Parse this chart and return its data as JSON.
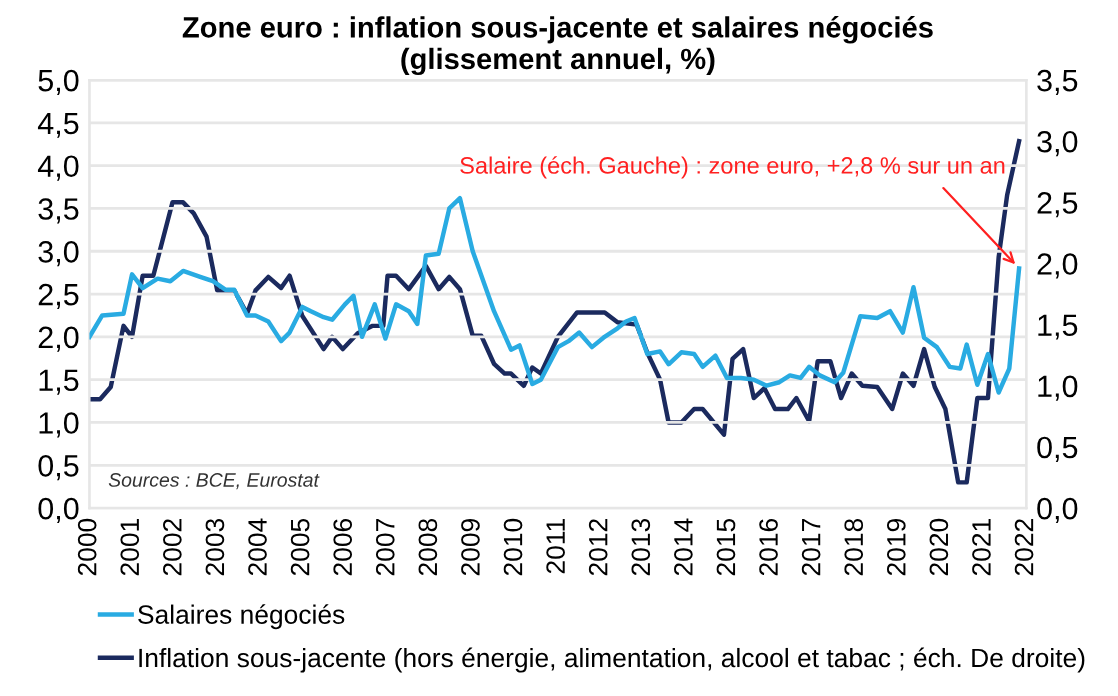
{
  "chart_data": {
    "type": "line",
    "title": "Zone euro : inflation sous-jacente et salaires négociés\n(glissement annuel, %)",
    "xlim": [
      2000,
      2022
    ],
    "xticks": [
      2000,
      2001,
      2002,
      2003,
      2004,
      2005,
      2006,
      2007,
      2008,
      2009,
      2010,
      2011,
      2012,
      2013,
      2014,
      2015,
      2016,
      2017,
      2018,
      2019,
      2020,
      2021,
      2022
    ],
    "ylim": [
      0,
      5
    ],
    "yticks": [
      {
        "value": 0,
        "label": "0,0"
      },
      {
        "value": 0.5,
        "label": "0,5"
      },
      {
        "value": 1,
        "label": "1,0"
      },
      {
        "value": 1.5,
        "label": "1,5"
      },
      {
        "value": 2,
        "label": "2,0"
      },
      {
        "value": 2.5,
        "label": "2,5"
      },
      {
        "value": 3,
        "label": "3,0"
      },
      {
        "value": 3.5,
        "label": "3,5"
      },
      {
        "value": 4,
        "label": "4,0"
      },
      {
        "value": 4.5,
        "label": "4,5"
      },
      {
        "value": 5,
        "label": "5,0"
      }
    ],
    "y2lim": [
      0,
      3.5
    ],
    "y2ticks": [
      {
        "value": 0,
        "label": "0,0"
      },
      {
        "value": 0.5,
        "label": "0,5"
      },
      {
        "value": 1,
        "label": "1,0"
      },
      {
        "value": 1.5,
        "label": "1,5"
      },
      {
        "value": 2,
        "label": "2,0"
      },
      {
        "value": 2.5,
        "label": "2,5"
      },
      {
        "value": 3,
        "label": "3,0"
      },
      {
        "value": 3.5,
        "label": "3,5"
      }
    ],
    "grid": "y",
    "legend": "bottom",
    "marker": "none",
    "line_style": "solid",
    "series": [
      {
        "name": "Salaires négociés",
        "color": "#29abe2",
        "x": [
          2000.0,
          2000.3,
          2000.8,
          2001.0,
          2001.25,
          2001.6,
          2001.9,
          2002.2,
          2002.6,
          2002.9,
          2003.2,
          2003.4,
          2003.7,
          2003.9,
          2004.2,
          2004.5,
          2004.7,
          2005.0,
          2005.2,
          2005.5,
          2005.7,
          2006.0,
          2006.2,
          2006.4,
          2006.7,
          2006.95,
          2007.2,
          2007.5,
          2007.7,
          2007.9,
          2008.2,
          2008.45,
          2008.7,
          2009.0,
          2009.5,
          2009.9,
          2010.1,
          2010.4,
          2010.6,
          2011.0,
          2011.25,
          2011.5,
          2011.8,
          2012.07,
          2012.4,
          2012.6,
          2012.8,
          2013.1,
          2013.4,
          2013.6,
          2013.9,
          2014.2,
          2014.4,
          2014.7,
          2014.97,
          2015.3,
          2015.6,
          2015.9,
          2016.2,
          2016.45,
          2016.7,
          2016.9,
          2017.15,
          2017.5,
          2017.7,
          2018.1,
          2018.5,
          2018.8,
          2019.1,
          2019.35,
          2019.6,
          2019.9,
          2020.2,
          2020.45,
          2020.6,
          2020.85,
          2021.1,
          2021.35,
          2021.6,
          2021.83
        ],
        "values": [
          2.0,
          2.25,
          2.27,
          2.73,
          2.57,
          2.68,
          2.65,
          2.77,
          2.7,
          2.65,
          2.55,
          2.55,
          2.25,
          2.25,
          2.18,
          1.95,
          2.05,
          2.35,
          2.3,
          2.23,
          2.2,
          2.38,
          2.48,
          2.0,
          2.38,
          1.98,
          2.38,
          2.3,
          2.15,
          2.95,
          2.97,
          3.5,
          3.62,
          3.0,
          2.3,
          1.85,
          1.9,
          1.45,
          1.5,
          1.88,
          1.95,
          2.05,
          1.88,
          1.99,
          2.1,
          2.18,
          2.22,
          1.8,
          1.83,
          1.68,
          1.82,
          1.8,
          1.65,
          1.78,
          1.52,
          1.52,
          1.5,
          1.43,
          1.47,
          1.55,
          1.52,
          1.65,
          1.55,
          1.47,
          1.58,
          2.24,
          2.22,
          2.3,
          2.05,
          2.58,
          1.99,
          1.88,
          1.65,
          1.63,
          1.91,
          1.44,
          1.8,
          1.35,
          1.63,
          2.8
        ]
      },
      {
        "name": "Inflation sous-jacente (hors énergie, alimentation, alcool et tabac ; éch. De droite)",
        "color": "#1b2a5e",
        "axis": "y2",
        "x": [
          2000.0,
          2000.25,
          2000.5,
          2000.8,
          2001.0,
          2001.25,
          2001.5,
          2001.95,
          2002.2,
          2002.45,
          2002.75,
          2003.0,
          2003.4,
          2003.7,
          2003.9,
          2004.2,
          2004.5,
          2004.7,
          2005.0,
          2005.5,
          2005.7,
          2005.95,
          2006.3,
          2006.65,
          2006.9,
          2007.0,
          2007.2,
          2007.5,
          2007.9,
          2008.2,
          2008.45,
          2008.7,
          2009.0,
          2009.2,
          2009.5,
          2009.75,
          2009.9,
          2010.2,
          2010.4,
          2010.6,
          2011.0,
          2011.45,
          2011.8,
          2012.1,
          2012.4,
          2012.85,
          2013.1,
          2013.4,
          2013.6,
          2013.9,
          2014.2,
          2014.4,
          2014.9,
          2015.1,
          2015.35,
          2015.6,
          2015.85,
          2016.1,
          2016.4,
          2016.6,
          2016.9,
          2017.1,
          2017.4,
          2017.65,
          2017.9,
          2018.15,
          2018.5,
          2018.85,
          2019.1,
          2019.35,
          2019.6,
          2019.85,
          2020.1,
          2020.4,
          2020.6,
          2020.85,
          2021.1,
          2021.35,
          2021.55,
          2021.83
        ],
        "values": [
          0.89,
          0.89,
          0.99,
          1.49,
          1.4,
          1.9,
          1.9,
          2.5,
          2.5,
          2.41,
          2.22,
          1.78,
          1.78,
          1.59,
          1.78,
          1.89,
          1.8,
          1.9,
          1.57,
          1.3,
          1.4,
          1.3,
          1.43,
          1.49,
          1.49,
          1.9,
          1.9,
          1.79,
          1.98,
          1.79,
          1.89,
          1.79,
          1.41,
          1.41,
          1.18,
          1.1,
          1.1,
          1.0,
          1.15,
          1.1,
          1.4,
          1.6,
          1.6,
          1.6,
          1.52,
          1.5,
          1.27,
          1.05,
          0.7,
          0.7,
          0.81,
          0.81,
          0.6,
          1.22,
          1.3,
          0.9,
          0.98,
          0.81,
          0.81,
          0.9,
          0.71,
          1.2,
          1.2,
          0.9,
          1.1,
          1.0,
          0.99,
          0.81,
          1.1,
          1.0,
          1.3,
          0.99,
          0.81,
          0.21,
          0.21,
          0.9,
          0.9,
          2.05,
          2.56,
          3.0
        ]
      }
    ],
    "annotations": [
      {
        "text": "Salaire (éch. Gauche) : zone euro, +2,8 % sur un an",
        "x": 2021.83,
        "y": 2.8
      },
      "Sources : BCE, Eurostat"
    ]
  }
}
